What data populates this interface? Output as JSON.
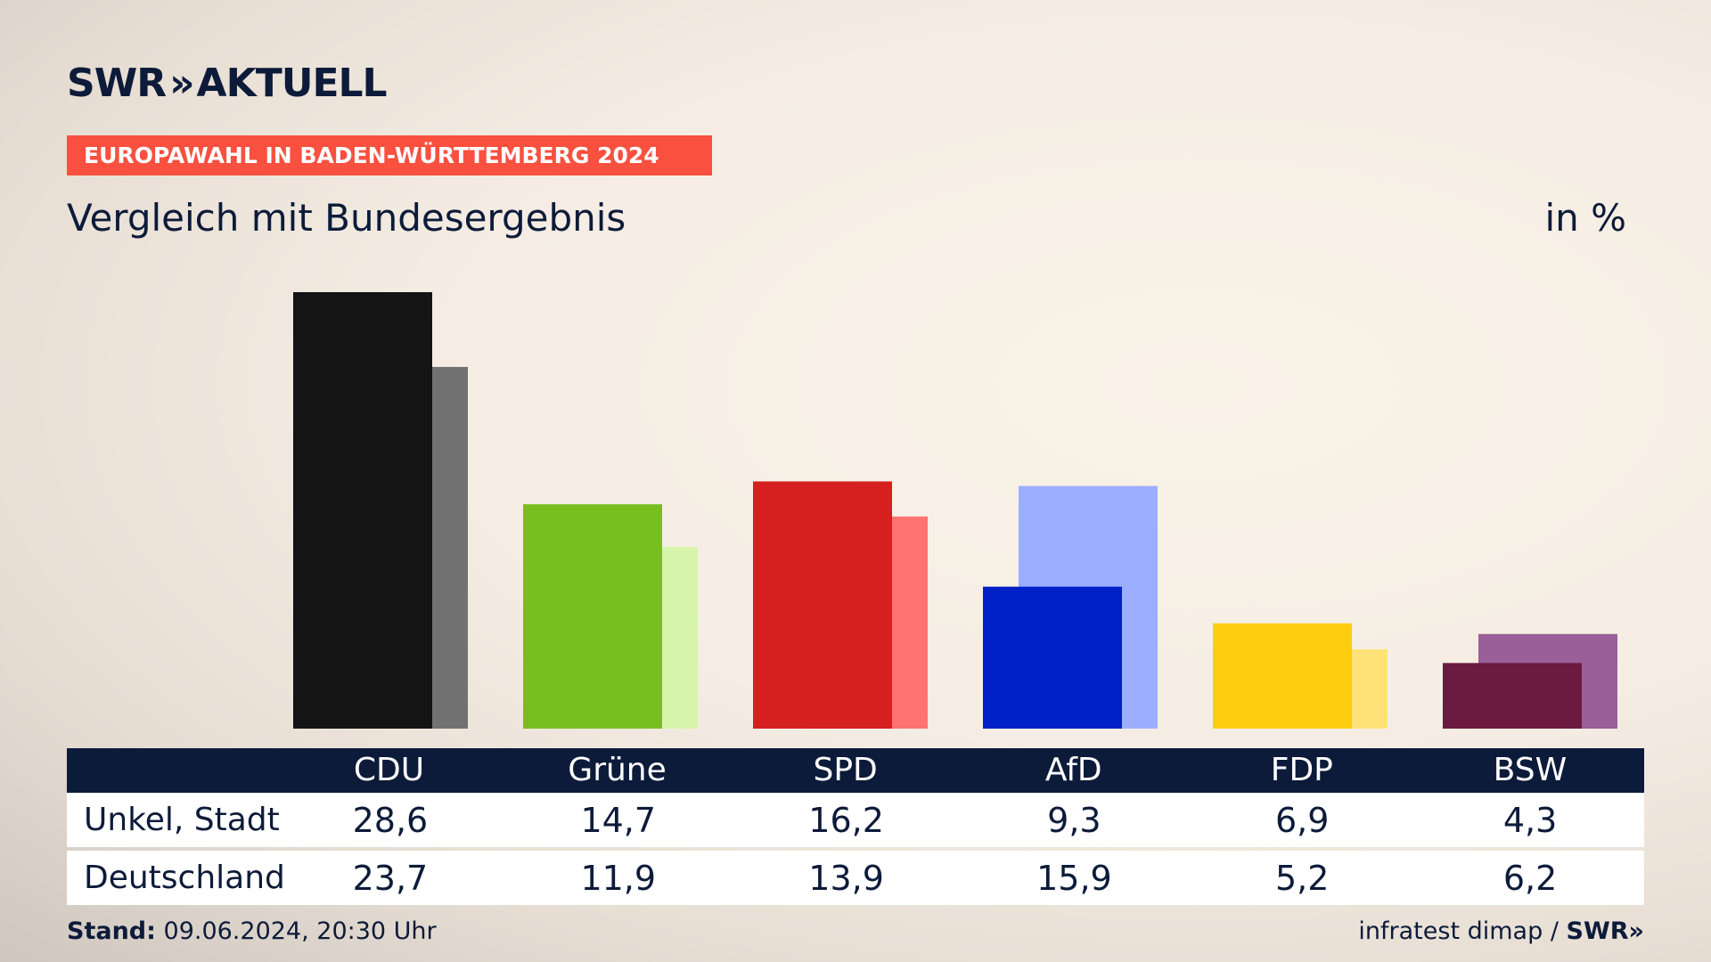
{
  "header": {
    "logo_text": "SWR",
    "logo_chevrons": "»",
    "logo_sub": "AKTUELL",
    "banner": "EUROPAWAHL IN BADEN-WÜRTTEMBERG 2024",
    "title": "Vergleich mit Bundesergebnis",
    "unit": "in %"
  },
  "chart_data": {
    "type": "bar",
    "title": "Vergleich mit Bundesergebnis",
    "xlabel": "",
    "ylabel": "in %",
    "categories": [
      "CDU",
      "Grüne",
      "SPD",
      "AfD",
      "FDP",
      "BSW"
    ],
    "series": [
      {
        "name": "Unkel, Stadt",
        "values": [
          28.6,
          14.7,
          16.2,
          9.3,
          6.9,
          4.3
        ]
      },
      {
        "name": "Deutschland",
        "values": [
          23.7,
          11.9,
          13.9,
          15.9,
          5.2,
          6.2
        ]
      }
    ],
    "value_labels": [
      [
        "28,6",
        "14,7",
        "16,2",
        "9,3",
        "6,9",
        "4,3"
      ],
      [
        "23,7",
        "11,9",
        "13,9",
        "15,9",
        "5,2",
        "6,2"
      ]
    ],
    "ylim": [
      0,
      28.6
    ],
    "colors": {
      "primary": [
        "#141414",
        "#78be1e",
        "#d62020",
        "#0020c8",
        "#ffcd0f",
        "#6b1a40"
      ],
      "secondary": [
        "#727272",
        "#d6f5aa",
        "#ff7370",
        "#9caeff",
        "#ffe277",
        "#9a5e99"
      ]
    },
    "grid": false,
    "legend": "table-below"
  },
  "footer": {
    "stand_label": "Stand:",
    "stand_value": "09.06.2024, 20:30 Uhr",
    "source": "infratest dimap /",
    "source_logo": "SWR»"
  }
}
